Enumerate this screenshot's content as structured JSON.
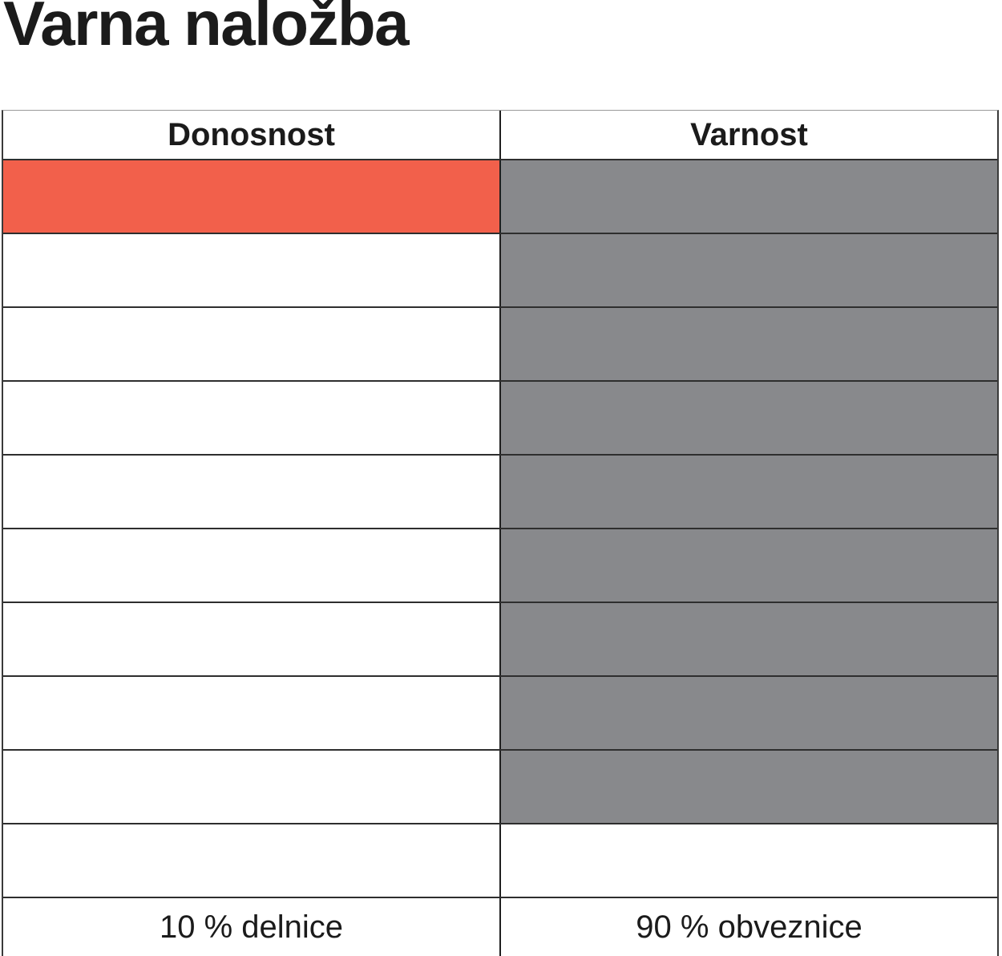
{
  "title": "Varna naložba",
  "chart_data": {
    "type": "pictograph-table",
    "title": "Varna naložba",
    "rows": 10,
    "grid": true,
    "legend_position": "none",
    "columns": [
      {
        "header": "Donosnost",
        "filled_cells": 1,
        "total_cells": 10,
        "fill_color": "#F2604B",
        "footer_label": "10 % delnice"
      },
      {
        "header": "Varnost",
        "filled_cells": 9,
        "total_cells": 10,
        "fill_color": "#88898C",
        "footer_label": "90 % obveznice"
      }
    ]
  },
  "colors": {
    "accent_red": "#F2604B",
    "neutral_gray": "#88898C",
    "grid_line": "#2E2E2E",
    "top_border": "#9A9A9A",
    "text": "#1B1B1B",
    "background": "#FFFFFF"
  }
}
